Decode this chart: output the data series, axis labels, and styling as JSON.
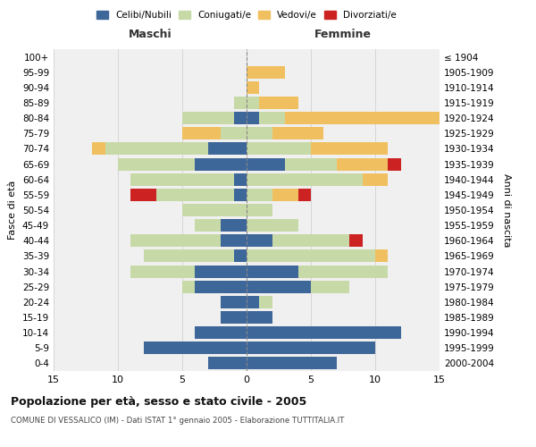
{
  "age_groups": [
    "0-4",
    "5-9",
    "10-14",
    "15-19",
    "20-24",
    "25-29",
    "30-34",
    "35-39",
    "40-44",
    "45-49",
    "50-54",
    "55-59",
    "60-64",
    "65-69",
    "70-74",
    "75-79",
    "80-84",
    "85-89",
    "90-94",
    "95-99",
    "100+"
  ],
  "birth_years": [
    "2000-2004",
    "1995-1999",
    "1990-1994",
    "1985-1989",
    "1980-1984",
    "1975-1979",
    "1970-1974",
    "1965-1969",
    "1960-1964",
    "1955-1959",
    "1950-1954",
    "1945-1949",
    "1940-1944",
    "1935-1939",
    "1930-1934",
    "1925-1929",
    "1920-1924",
    "1915-1919",
    "1910-1914",
    "1905-1909",
    "≤ 1904"
  ],
  "colors": {
    "celibi": "#3d6699",
    "coniugati": "#c8d9a8",
    "vedovi": "#f0c060",
    "divorziati": "#cc2222"
  },
  "males": {
    "celibi": [
      3,
      8,
      4,
      2,
      2,
      4,
      4,
      1,
      2,
      2,
      0,
      1,
      1,
      4,
      3,
      0,
      1,
      0,
      0,
      0,
      0
    ],
    "coniugati": [
      0,
      0,
      0,
      0,
      0,
      1,
      5,
      7,
      7,
      2,
      5,
      6,
      8,
      6,
      8,
      2,
      4,
      1,
      0,
      0,
      0
    ],
    "vedovi": [
      0,
      0,
      0,
      0,
      0,
      0,
      0,
      0,
      0,
      0,
      0,
      0,
      0,
      0,
      1,
      3,
      0,
      0,
      0,
      0,
      0
    ],
    "divorziati": [
      0,
      0,
      0,
      0,
      0,
      0,
      0,
      0,
      0,
      0,
      0,
      2,
      0,
      0,
      0,
      0,
      0,
      0,
      0,
      0,
      0
    ]
  },
  "females": {
    "nubili": [
      7,
      10,
      12,
      2,
      1,
      5,
      4,
      0,
      2,
      0,
      0,
      0,
      0,
      3,
      0,
      0,
      1,
      0,
      0,
      0,
      0
    ],
    "coniugate": [
      0,
      0,
      0,
      0,
      1,
      3,
      7,
      10,
      6,
      4,
      2,
      2,
      9,
      4,
      5,
      2,
      2,
      1,
      0,
      0,
      0
    ],
    "vedove": [
      0,
      0,
      0,
      0,
      0,
      0,
      0,
      1,
      0,
      0,
      0,
      2,
      2,
      4,
      6,
      4,
      13,
      3,
      1,
      3,
      0
    ],
    "divorziate": [
      0,
      0,
      0,
      0,
      0,
      0,
      0,
      0,
      1,
      0,
      0,
      1,
      0,
      1,
      0,
      0,
      0,
      0,
      0,
      0,
      0
    ]
  },
  "xlim": 15,
  "title": "Popolazione per età, sesso e stato civile - 2005",
  "subtitle": "COMUNE DI VESSALICO (IM) - Dati ISTAT 1° gennaio 2005 - Elaborazione TUTTITALIA.IT",
  "ylabel_left": "Fasce di età",
  "ylabel_right": "Anni di nascita",
  "xlabel_left": "Maschi",
  "xlabel_right": "Femmine"
}
